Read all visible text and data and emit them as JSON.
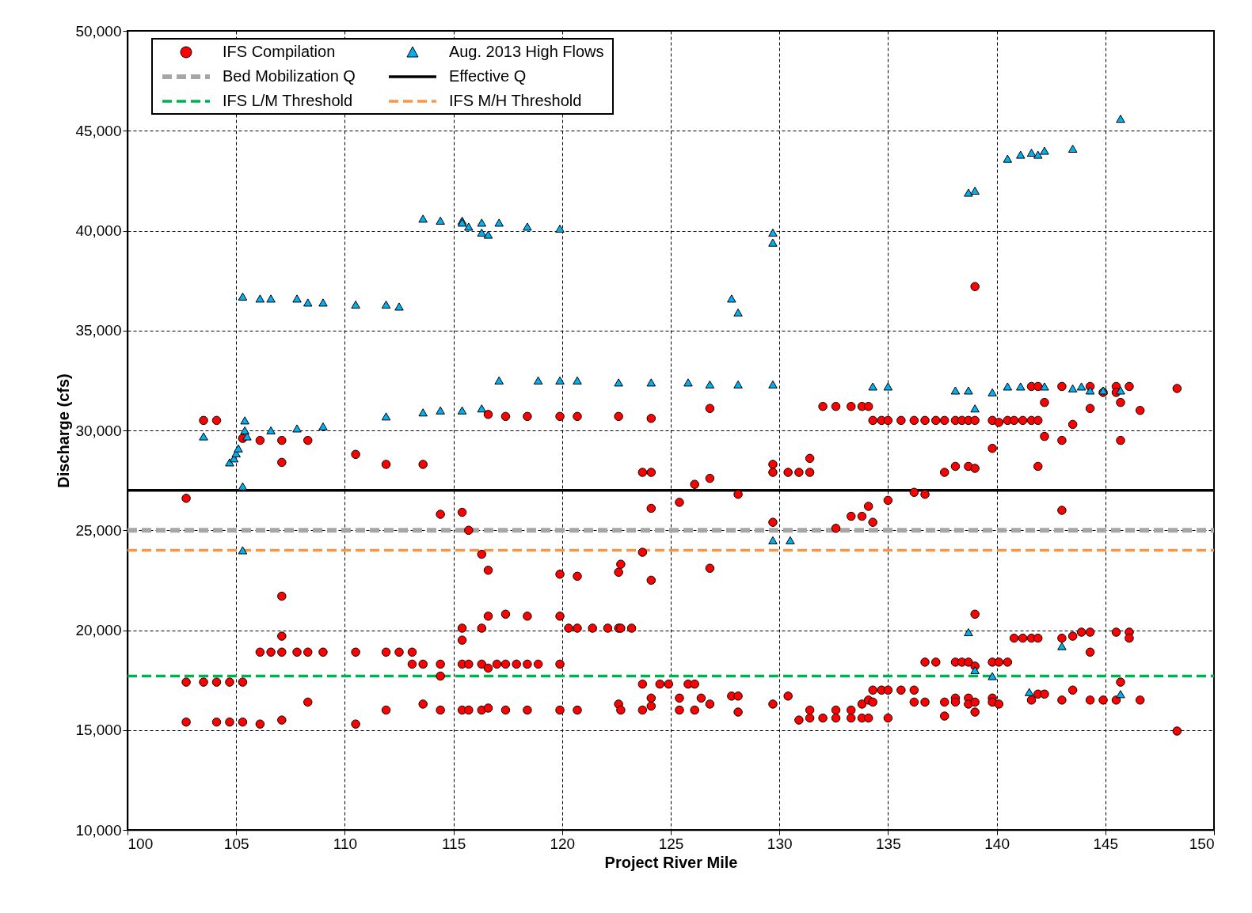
{
  "chart_data": {
    "type": "scatter",
    "xlabel": "Project River Mile",
    "ylabel": "Discharge (cfs)",
    "xlim": [
      100,
      150
    ],
    "ylim": [
      10000,
      50000
    ],
    "xticks": [
      100,
      105,
      110,
      115,
      120,
      125,
      130,
      135,
      140,
      145,
      150
    ],
    "yticks": [
      {
        "value": 10000,
        "label": "10,000"
      },
      {
        "value": 15000,
        "label": "15,000"
      },
      {
        "value": 20000,
        "label": "20,000"
      },
      {
        "value": 25000,
        "label": "25,000"
      },
      {
        "value": 30000,
        "label": "30,000"
      },
      {
        "value": 35000,
        "label": "35,000"
      },
      {
        "value": 40000,
        "label": "40,000"
      },
      {
        "value": 45000,
        "label": "45,000"
      },
      {
        "value": 50000,
        "label": "50,000"
      }
    ],
    "grid": true,
    "legend": "top left",
    "series": [
      {
        "name": "IFS Compilation",
        "type": "scatter",
        "marker": "circle",
        "color": "#ff0000",
        "x": [
          102.7,
          102.7,
          102.7,
          103.5,
          103.5,
          104.1,
          104.1,
          104.1,
          104.7,
          104.7,
          105.3,
          105.3,
          105.3,
          106.1,
          106.1,
          106.1,
          106.6,
          107.1,
          107.1,
          107.1,
          107.1,
          107.1,
          107.1,
          107.8,
          108.3,
          108.3,
          108.3,
          109.0,
          110.5,
          110.5,
          110.5,
          111.9,
          111.9,
          111.9,
          112.5,
          113.1,
          113.1,
          113.6,
          113.6,
          113.6,
          114.4,
          114.4,
          114.4,
          114.4,
          115.4,
          115.4,
          115.4,
          115.4,
          115.4,
          115.7,
          115.7,
          115.7,
          116.3,
          116.3,
          116.3,
          116.3,
          116.6,
          116.6,
          116.6,
          116.6,
          116.6,
          117.0,
          117.4,
          117.4,
          117.4,
          117.4,
          117.9,
          118.4,
          118.4,
          118.4,
          118.4,
          118.9,
          119.9,
          119.9,
          119.9,
          119.9,
          119.9,
          120.3,
          120.7,
          120.7,
          120.7,
          120.7,
          121.4,
          122.1,
          122.6,
          122.6,
          122.6,
          122.7,
          122.6,
          122.7,
          122.7,
          123.2,
          123.7,
          123.7,
          123.7,
          123.7,
          124.1,
          124.1,
          124.1,
          124.1,
          124.1,
          124.1,
          124.5,
          124.9,
          125.4,
          125.4,
          125.4,
          125.8,
          126.1,
          126.1,
          126.1,
          126.4,
          126.8,
          126.8,
          126.8,
          126.8,
          127.8,
          128.1,
          128.1,
          128.1,
          129.7,
          129.7,
          129.7,
          129.7,
          130.4,
          130.4,
          130.9,
          130.9,
          131.4,
          131.4,
          131.4,
          131.4,
          132.0,
          132.0,
          132.6,
          132.6,
          132.6,
          132.6,
          133.3,
          133.3,
          133.3,
          133.3,
          133.8,
          133.8,
          133.8,
          133.8,
          134.1,
          134.1,
          134.1,
          134.1,
          134.3,
          134.3,
          134.3,
          134.3,
          134.7,
          134.7,
          135.0,
          135.0,
          135.0,
          135.0,
          135.6,
          135.6,
          136.2,
          136.2,
          136.2,
          136.2,
          136.7,
          136.7,
          136.7,
          136.7,
          137.2,
          137.2,
          137.6,
          137.6,
          137.6,
          137.6,
          138.1,
          138.1,
          138.1,
          138.1,
          138.1,
          138.4,
          138.4,
          138.7,
          138.7,
          138.7,
          138.7,
          138.7,
          139.0,
          139.0,
          139.0,
          139.0,
          139.0,
          139.0,
          139.0,
          139.8,
          139.8,
          139.8,
          139.8,
          139.8,
          140.1,
          140.1,
          140.1,
          140.5,
          140.5,
          140.8,
          140.8,
          141.2,
          141.2,
          141.6,
          141.6,
          141.6,
          141.6,
          141.9,
          141.9,
          141.9,
          141.9,
          141.9,
          142.2,
          142.2,
          142.2,
          143.0,
          143.0,
          143.0,
          143.0,
          143.0,
          143.5,
          143.5,
          143.5,
          143.9,
          144.3,
          144.3,
          144.3,
          144.3,
          144.3,
          144.9,
          144.9,
          145.5,
          145.5,
          145.5,
          145.5,
          145.7,
          145.7,
          145.7,
          146.1,
          146.1,
          146.1,
          146.6,
          146.6,
          148.3,
          148.3
        ],
        "values": [
          26600,
          17400,
          15400,
          30500,
          17400,
          30500,
          17400,
          15400,
          17400,
          15400,
          29600,
          17400,
          15400,
          29500,
          18900,
          15300,
          18900,
          29500,
          28400,
          21700,
          19700,
          18900,
          15500,
          18900,
          29500,
          18900,
          16400,
          18900,
          28800,
          18900,
          15300,
          28300,
          18900,
          16000,
          18900,
          18900,
          18300,
          28300,
          18300,
          16300,
          25800,
          18300,
          17700,
          16000,
          25900,
          20100,
          19500,
          18300,
          16000,
          25000,
          18300,
          16000,
          23800,
          20100,
          18300,
          16000,
          30800,
          23000,
          20700,
          18100,
          16100,
          18300,
          30700,
          20800,
          18300,
          16000,
          18300,
          30700,
          20700,
          18300,
          16000,
          18300,
          30700,
          22800,
          20700,
          18300,
          16000,
          20100,
          30700,
          22700,
          20100,
          16000,
          20100,
          20100,
          30700,
          20100,
          22900,
          23300,
          16300,
          16000,
          20100,
          20100,
          27900,
          23900,
          17300,
          16000,
          27900,
          30600,
          26100,
          22500,
          16600,
          16200,
          17300,
          17300,
          26400,
          16600,
          16000,
          17300,
          27300,
          17300,
          16000,
          16600,
          31100,
          27600,
          23100,
          16300,
          16700,
          26800,
          16700,
          15900,
          28300,
          27900,
          25400,
          16300,
          27900,
          16700,
          27900,
          15500,
          28600,
          27900,
          16000,
          15600,
          31200,
          15600,
          31200,
          25100,
          16000,
          15600,
          31200,
          25700,
          16000,
          15600,
          31200,
          25700,
          16300,
          15600,
          31200,
          26200,
          16500,
          15600,
          30500,
          25400,
          17000,
          16400,
          30500,
          17000,
          30500,
          26500,
          17000,
          15600,
          30500,
          17000,
          30500,
          26900,
          17000,
          16400,
          30500,
          26800,
          18400,
          16400,
          30500,
          18400,
          30500,
          27900,
          16400,
          15700,
          30500,
          28200,
          18400,
          16600,
          16400,
          30500,
          18400,
          30500,
          28200,
          18400,
          16600,
          16300,
          30500,
          37200,
          28100,
          20800,
          18200,
          16400,
          15900,
          30500,
          29100,
          18400,
          16600,
          16400,
          30400,
          18400,
          16300,
          30500,
          18400,
          30500,
          19600,
          30500,
          19600,
          30500,
          19600,
          16500,
          32200,
          32200,
          30500,
          28200,
          19600,
          16800,
          31400,
          29700,
          16800,
          32200,
          29500,
          26000,
          19600,
          16500,
          30300,
          19700,
          17000,
          19900,
          32200,
          31100,
          19900,
          18900,
          16500,
          31900,
          16500,
          32200,
          31900,
          19900,
          16500,
          31400,
          29500,
          17400,
          32200,
          19900,
          19600,
          31000,
          16500,
          32100,
          14950
        ]
      },
      {
        "name": "Aug. 2013 High Flows",
        "type": "scatter",
        "marker": "triangle",
        "color": "#00b0f0",
        "x": [
          103.5,
          104.7,
          104.9,
          105.0,
          105.1,
          105.4,
          105.4,
          105.5,
          105.3,
          105.3,
          105.3,
          106.1,
          106.6,
          106.6,
          107.8,
          108.3,
          109.0,
          107.8,
          109.0,
          110.5,
          111.9,
          112.5,
          111.9,
          113.6,
          114.4,
          113.6,
          114.4,
          115.4,
          115.4,
          115.7,
          116.3,
          116.3,
          116.6,
          117.1,
          115.4,
          116.3,
          117.1,
          118.4,
          118.9,
          119.9,
          119.9,
          120.7,
          122.6,
          124.1,
          125.8,
          126.8,
          127.8,
          128.1,
          128.1,
          129.7,
          129.7,
          129.7,
          129.7,
          130.5,
          134.3,
          135.0,
          138.1,
          138.7,
          139.0,
          138.7,
          139.0,
          138.7,
          139.0,
          139.8,
          139.8,
          140.5,
          140.5,
          141.1,
          141.1,
          141.6,
          141.9,
          142.2,
          142.2,
          141.5,
          143.0,
          143.5,
          143.5,
          143.9,
          144.3,
          144.9,
          145.7,
          145.7,
          145.7
        ],
        "values": [
          29700,
          28400,
          28600,
          28850,
          29100,
          30500,
          30000,
          29700,
          27200,
          24000,
          36700,
          36600,
          36600,
          30000,
          36600,
          36400,
          36400,
          30100,
          30200,
          36300,
          36300,
          36200,
          30700,
          40600,
          40500,
          30900,
          31000,
          40500,
          40400,
          40200,
          40400,
          39900,
          39800,
          40400,
          31000,
          31100,
          32500,
          40200,
          32500,
          40100,
          32500,
          32500,
          32400,
          32400,
          32400,
          32300,
          36600,
          35900,
          32300,
          39900,
          39400,
          32300,
          24500,
          24500,
          32200,
          32200,
          32000,
          32000,
          31100,
          41900,
          42000,
          19900,
          18000,
          31900,
          17700,
          43600,
          32200,
          43800,
          32200,
          43900,
          43800,
          44000,
          32200,
          16900,
          19200,
          44100,
          32100,
          32200,
          32000,
          32000,
          45600,
          32000,
          16800
        ]
      },
      {
        "name": "Bed Mobilization Q",
        "type": "line",
        "line_style": "dashed",
        "color": "#a6a6a6",
        "x": [
          100,
          150
        ],
        "values": [
          25000,
          25000
        ]
      },
      {
        "name": "Effective Q",
        "type": "line",
        "line_style": "solid",
        "color": "#000000",
        "x": [
          100,
          150
        ],
        "values": [
          27000,
          27000
        ]
      },
      {
        "name": "IFS L/M Threshold",
        "type": "line",
        "line_style": "dashed",
        "color": "#00b050",
        "x": [
          100,
          150
        ],
        "values": [
          17700,
          17700
        ]
      },
      {
        "name": "IFS M/H Threshold",
        "type": "line",
        "line_style": "dashed",
        "color": "#f79646",
        "x": [
          100,
          150
        ],
        "values": [
          24000,
          24000
        ]
      }
    ]
  }
}
